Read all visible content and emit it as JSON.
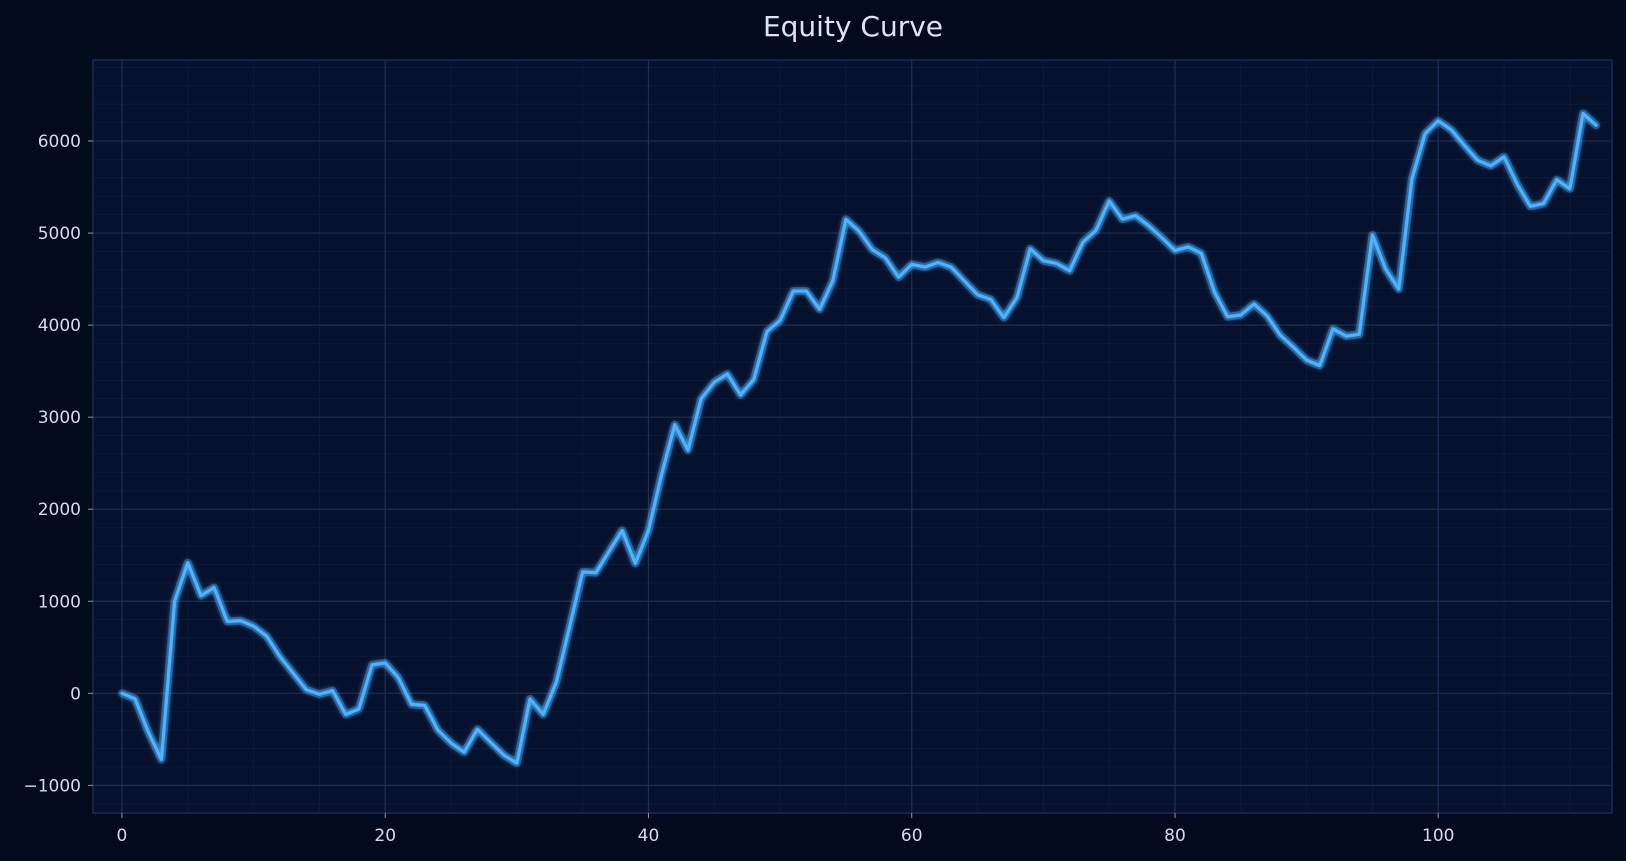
{
  "chart_data": {
    "type": "line",
    "title": "Equity Curve",
    "xlabel": "",
    "ylabel": "",
    "xlim": [
      -2.2,
      113.2
    ],
    "ylim": [
      -1300,
      6880
    ],
    "x_ticks": [
      0,
      20,
      40,
      60,
      80,
      100
    ],
    "y_ticks": [
      -1000,
      0,
      1000,
      2000,
      3000,
      4000,
      5000,
      6000
    ],
    "x_tick_labels": [
      "0",
      "20",
      "40",
      "60",
      "80",
      "100"
    ],
    "y_tick_labels": [
      "−1000",
      "0",
      "1000",
      "2000",
      "3000",
      "4000",
      "5000",
      "6000"
    ],
    "grid": true,
    "line_color": "#4db2ff",
    "series": [
      {
        "values": [
          0,
          -60,
          -420,
          -720,
          1000,
          1420,
          1060,
          1150,
          780,
          790,
          730,
          620,
          400,
          220,
          40,
          -10,
          30,
          -230,
          -170,
          310,
          330,
          170,
          -120,
          -130,
          -400,
          -540,
          -640,
          -390,
          -530,
          -670,
          -760,
          -60,
          -230,
          120,
          720,
          1320,
          1310,
          1540,
          1770,
          1410,
          1770,
          2380,
          2920,
          2640,
          3200,
          3380,
          3470,
          3240,
          3410,
          3930,
          4050,
          4370,
          4370,
          4170,
          4480,
          5150,
          5020,
          4820,
          4730,
          4520,
          4660,
          4630,
          4680,
          4630,
          4480,
          4330,
          4280,
          4080,
          4300,
          4830,
          4700,
          4670,
          4590,
          4900,
          5030,
          5350,
          5150,
          5190,
          5080,
          4950,
          4810,
          4850,
          4780,
          4360,
          4090,
          4110,
          4230,
          4100,
          3890,
          3760,
          3620,
          3560,
          3960,
          3880,
          3900,
          4980,
          4610,
          4390,
          5590,
          6080,
          6220,
          6120,
          5950,
          5790,
          5730,
          5830,
          5530,
          5290,
          5320,
          5580,
          5480,
          6300,
          6170
        ]
      }
    ]
  }
}
